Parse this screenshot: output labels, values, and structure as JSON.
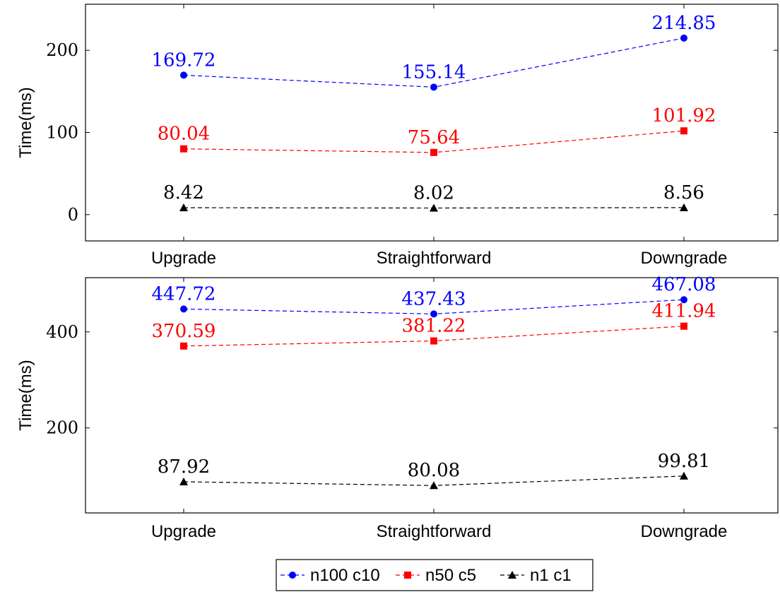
{
  "chart_data": [
    {
      "type": "line",
      "categories": [
        "Upgrade",
        "Straightforward",
        "Downgrade"
      ],
      "ylabel": "Time(ms)",
      "ylim": [
        -32,
        256
      ],
      "yticks": [
        0,
        100,
        200
      ],
      "series": [
        {
          "name": "n100 c10",
          "color": "#0000ff",
          "marker": "circle",
          "values": [
            169.72,
            155.14,
            214.85
          ],
          "labels": [
            "169.72",
            "155.14",
            "214.85"
          ]
        },
        {
          "name": "n50 c5",
          "color": "#ff0000",
          "marker": "square",
          "values": [
            80.04,
            75.64,
            101.92
          ],
          "labels": [
            "80.04",
            "75.64",
            "101.92"
          ]
        },
        {
          "name": "n1 c1",
          "color": "#000000",
          "marker": "triangle",
          "values": [
            8.42,
            8.02,
            8.56
          ],
          "labels": [
            "8.42",
            "8.02",
            "8.56"
          ]
        }
      ]
    },
    {
      "type": "line",
      "categories": [
        "Upgrade",
        "Straightforward",
        "Downgrade"
      ],
      "ylabel": "Time(ms)",
      "ylim": [
        23,
        513
      ],
      "yticks": [
        200,
        400
      ],
      "series": [
        {
          "name": "n100 c10",
          "color": "#0000ff",
          "marker": "circle",
          "values": [
            447.72,
            437.43,
            467.08
          ],
          "labels": [
            "447.72",
            "437.43",
            "467.08"
          ]
        },
        {
          "name": "n50 c5",
          "color": "#ff0000",
          "marker": "square",
          "values": [
            370.59,
            381.22,
            411.94
          ],
          "labels": [
            "370.59",
            "381.22",
            "411.94"
          ]
        },
        {
          "name": "n1 c1",
          "color": "#000000",
          "marker": "triangle",
          "values": [
            87.92,
            80.08,
            99.81
          ],
          "labels": [
            "87.92",
            "80.08",
            "99.81"
          ]
        }
      ]
    }
  ],
  "legend": {
    "placement": "bottom-center",
    "entries": [
      {
        "name": "n100 c10",
        "color": "#0000ff",
        "marker": "circle"
      },
      {
        "name": "n50 c5",
        "color": "#ff0000",
        "marker": "square"
      },
      {
        "name": "n1 c1",
        "color": "#000000",
        "marker": "triangle"
      }
    ]
  }
}
